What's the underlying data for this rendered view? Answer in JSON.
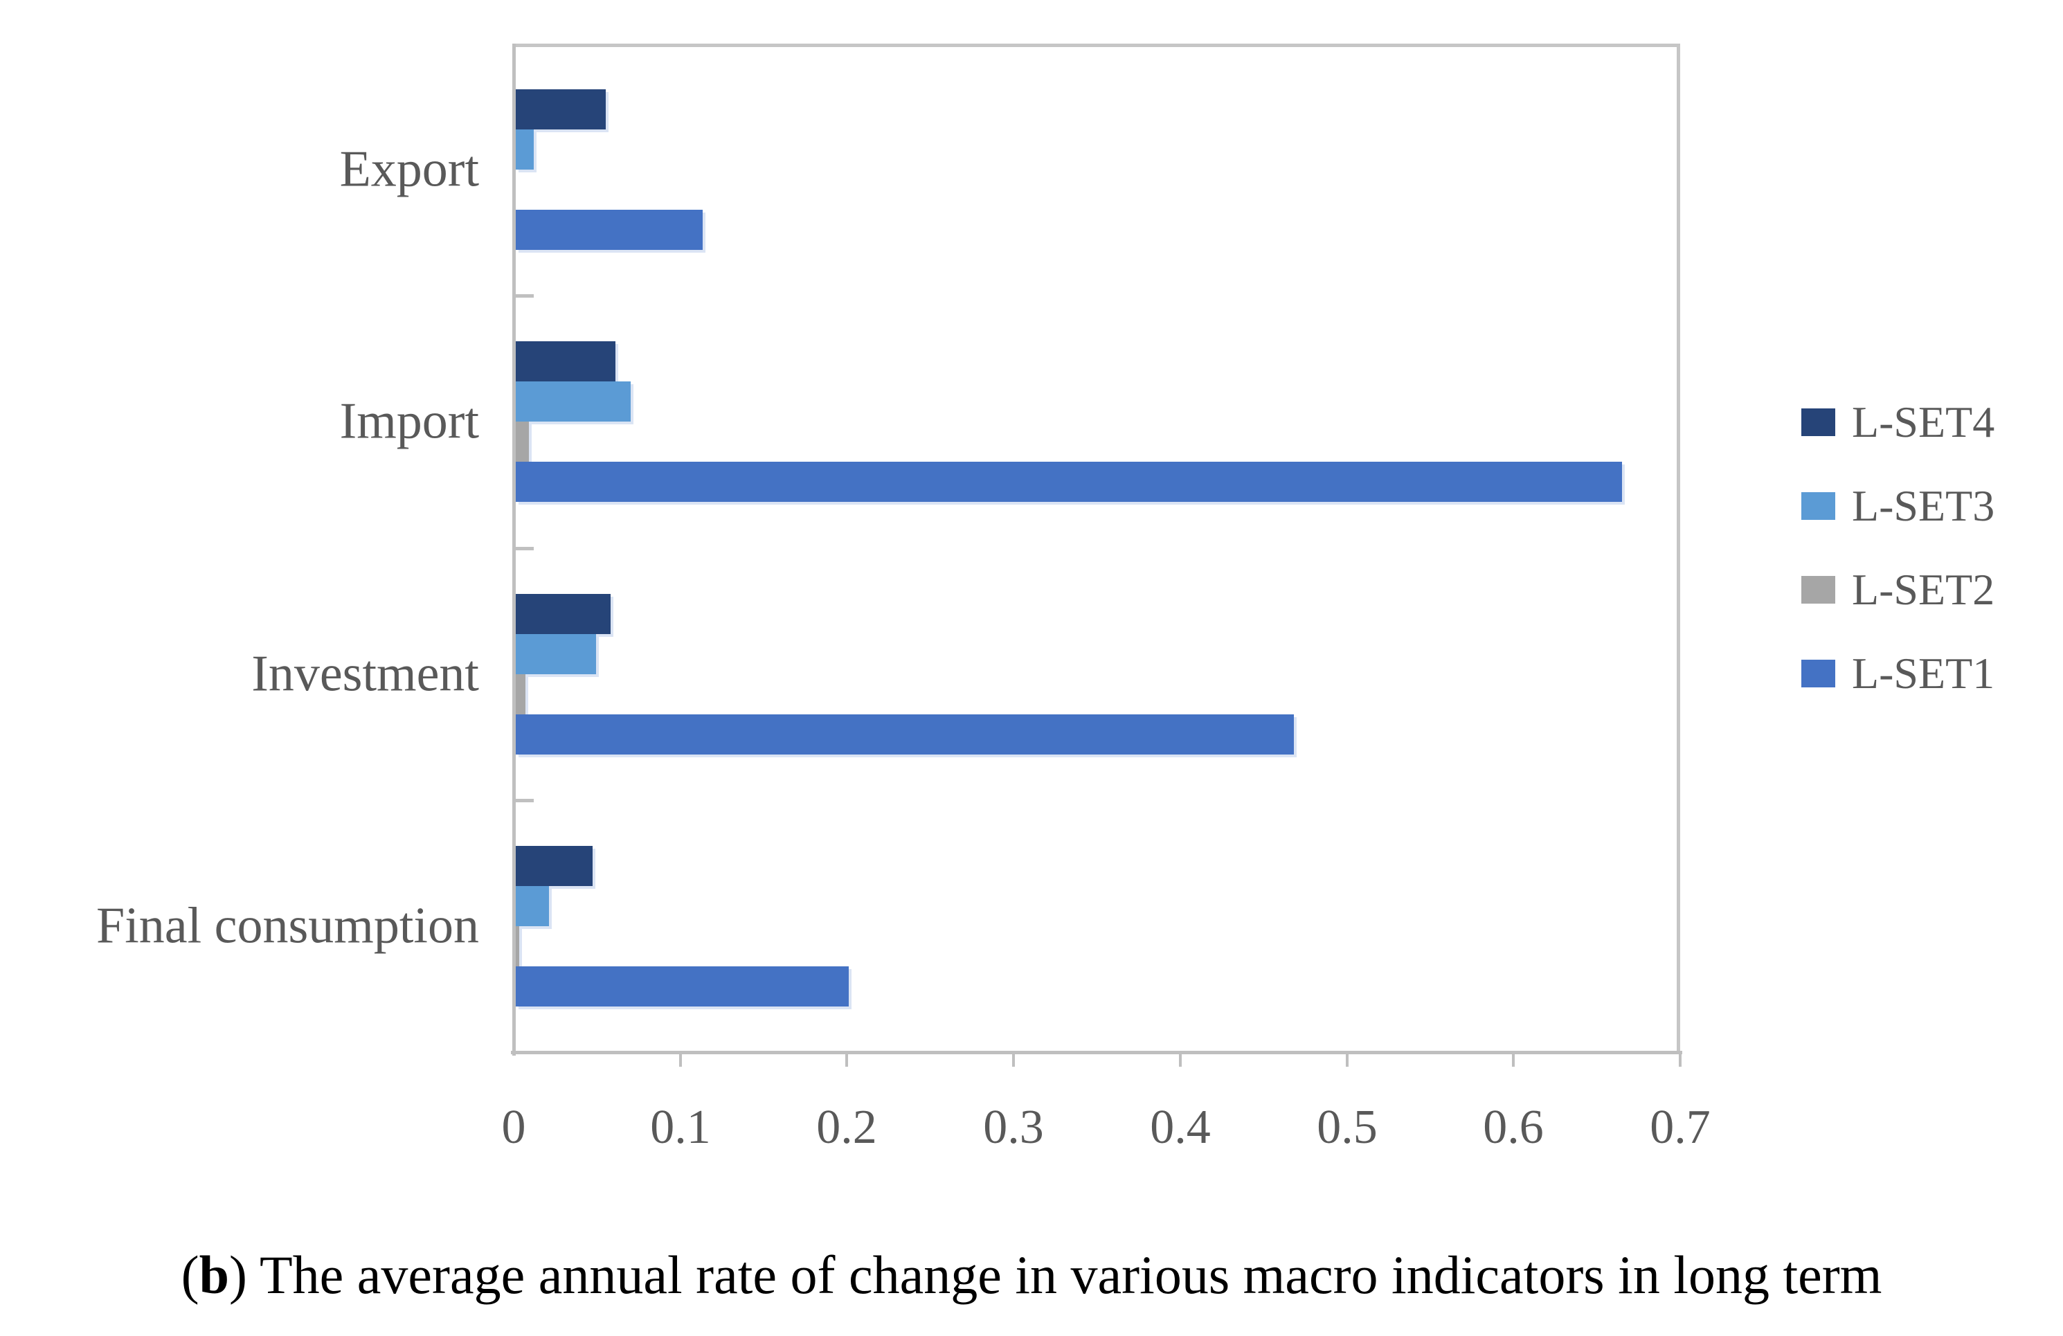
{
  "figure": {
    "caption": {
      "open": "(",
      "bold": "b",
      "close": ")",
      "text": "The average annual rate of change in various macro indicators in long term"
    }
  },
  "chart_data": {
    "type": "bar",
    "orientation": "horizontal",
    "title": "",
    "categories": [
      "Export",
      "Import",
      "Investment",
      "Final consumption"
    ],
    "series": [
      {
        "name": "L-SET4",
        "color": "#264478",
        "values": [
          0.054,
          0.06,
          0.057,
          0.046
        ]
      },
      {
        "name": "L-SET3",
        "color": "#5B9BD5",
        "values": [
          0.011,
          0.069,
          0.048,
          0.02
        ]
      },
      {
        "name": "L-SET2",
        "color": "#A6A6A6",
        "values": [
          0.0,
          0.008,
          0.006,
          0.002
        ]
      },
      {
        "name": "L-SET1",
        "color": "#4472C4",
        "values": [
          0.112,
          0.664,
          0.467,
          0.2
        ]
      }
    ],
    "bar_order_top_to_bottom": [
      "L-SET4",
      "L-SET3",
      "L-SET2",
      "L-SET1"
    ],
    "legend_order_top_to_bottom": [
      "L-SET4",
      "L-SET3",
      "L-SET2",
      "L-SET1"
    ],
    "legend_position": "right",
    "grid": false,
    "x_axis": {
      "min": 0,
      "max": 0.7,
      "tick_interval": 0.1,
      "tick_labels": [
        "0",
        "0.1",
        "0.2",
        "0.3",
        "0.4",
        "0.5",
        "0.6",
        "0.7"
      ]
    },
    "colors": {
      "axis": "#BFBFBF",
      "plot_border": "#C9C9C9",
      "label_text": "#595959",
      "caption_text": "#000000"
    }
  }
}
